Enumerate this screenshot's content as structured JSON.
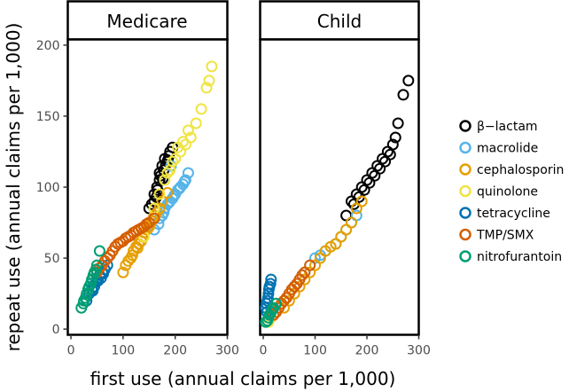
{
  "chart_data": {
    "type": "scatter",
    "xlabel": "first use (annual claims per 1,000)",
    "ylabel": "repeat use (annual claims per 1,000)",
    "xlim": [
      0,
      300
    ],
    "ylim": [
      0,
      200
    ],
    "xticks": [
      "0",
      "100",
      "200",
      "300"
    ],
    "yticks": [
      "0",
      "50",
      "100",
      "150",
      "200"
    ],
    "grid": false,
    "legend_position": "right",
    "legend": [
      {
        "name": "β−lactam",
        "color": "#000000"
      },
      {
        "name": "macrolide",
        "color": "#56B4E9"
      },
      {
        "name": "cephalosporin",
        "color": "#E69F00"
      },
      {
        "name": "quinolone",
        "color": "#F0E442"
      },
      {
        "name": "tetracycline",
        "color": "#0072B2"
      },
      {
        "name": "TMP/SMX",
        "color": "#D55E00"
      },
      {
        "name": "nitrofurantoin",
        "color": "#009E73"
      }
    ],
    "panels": [
      {
        "title": "Medicare",
        "series": [
          {
            "name": "β−lactam",
            "color": "#000000",
            "x": [
              150,
              160,
              165,
              170,
              175,
              180,
              185,
              190,
              160,
              170,
              178,
              188,
              195,
              172,
              182,
              155,
              166,
              176,
              186,
              164
            ],
            "y": [
              85,
              95,
              100,
              110,
              115,
              120,
              118,
              125,
              90,
              105,
              112,
              122,
              128,
              108,
              116,
              88,
              98,
              106,
              119,
              93
            ]
          },
          {
            "name": "macrolide",
            "color": "#56B4E9",
            "x": [
              160,
              170,
              180,
              190,
              200,
              210,
              220,
              175,
              185,
              195,
              205,
              215,
              168,
              178,
              188,
              198,
              208,
              218,
              225,
              192
            ],
            "y": [
              70,
              78,
              85,
              90,
              95,
              100,
              105,
              80,
              88,
              92,
              98,
              102,
              74,
              82,
              89,
              94,
              99,
              104,
              110,
              115
            ]
          },
          {
            "name": "cephalosporin",
            "color": "#E69F00",
            "x": [
              100,
              110,
              120,
              130,
              140,
              150,
              160,
              170,
              115,
              125,
              135,
              145,
              155,
              165,
              105,
              118,
              128,
              138,
              148,
              158,
              175,
              185
            ],
            "y": [
              40,
              48,
              55,
              60,
              68,
              72,
              80,
              85,
              50,
              58,
              62,
              70,
              76,
              82,
              45,
              52,
              57,
              65,
              71,
              78,
              90,
              96
            ]
          },
          {
            "name": "quinolone",
            "color": "#F0E442",
            "x": [
              140,
              150,
              160,
              170,
              180,
              190,
              200,
              210,
              220,
              230,
              240,
              250,
              260,
              265,
              270,
              195,
              205,
              215,
              225,
              185
            ],
            "y": [
              65,
              75,
              85,
              95,
              105,
              112,
              120,
              125,
              130,
              135,
              145,
              155,
              170,
              175,
              185,
              118,
              128,
              132,
              140,
              110
            ]
          },
          {
            "name": "tetracycline",
            "color": "#0072B2",
            "x": [
              30,
              40,
              50,
              60,
              70,
              45,
              55,
              65,
              35,
              48,
              58,
              42,
              52,
              62
            ],
            "y": [
              20,
              28,
              35,
              40,
              45,
              30,
              38,
              42,
              25,
              33,
              36,
              27,
              34,
              39
            ]
          },
          {
            "name": "TMP/SMX",
            "color": "#D55E00",
            "x": [
              50,
              60,
              70,
              80,
              90,
              100,
              110,
              120,
              130,
              140,
              150,
              160,
              65,
              75,
              85,
              95,
              105,
              115,
              125,
              135,
              145,
              55
            ],
            "y": [
              40,
              45,
              50,
              55,
              60,
              62,
              65,
              68,
              70,
              72,
              75,
              78,
              48,
              52,
              58,
              61,
              64,
              66,
              69,
              71,
              74,
              43
            ]
          },
          {
            "name": "nitrofurantoin",
            "color": "#009E73",
            "x": [
              20,
              25,
              30,
              35,
              40,
              45,
              50,
              55,
              28,
              33,
              38,
              43,
              48,
              24
            ],
            "y": [
              15,
              20,
              25,
              30,
              35,
              40,
              45,
              55,
              22,
              28,
              32,
              38,
              42,
              18
            ]
          }
        ]
      },
      {
        "title": "Child",
        "series": [
          {
            "name": "β−lactam",
            "color": "#000000",
            "x": [
              160,
              170,
              180,
              190,
              200,
              210,
              220,
              230,
              240,
              250,
              260,
              270,
              280,
              175,
              185,
              195,
              205,
              215,
              225,
              235,
              245,
              255
            ],
            "y": [
              80,
              90,
              95,
              100,
              105,
              110,
              115,
              120,
              125,
              130,
              145,
              165,
              175,
              88,
              93,
              98,
              103,
              108,
              113,
              118,
              123,
              135
            ]
          },
          {
            "name": "macrolide",
            "color": "#56B4E9",
            "x": [
              20,
              40,
              60,
              80,
              100,
              120,
              140,
              160,
              180,
              50,
              70,
              90,
              110,
              130,
              150,
              170,
              30
            ],
            "y": [
              10,
              20,
              30,
              40,
              50,
              55,
              60,
              70,
              80,
              25,
              35,
              45,
              52,
              58,
              65,
              75,
              15
            ]
          },
          {
            "name": "cephalosporin",
            "color": "#E69F00",
            "x": [
              40,
              60,
              80,
              100,
              120,
              140,
              160,
              170,
              180,
              190,
              70,
              90,
              110,
              130,
              150,
              50
            ],
            "y": [
              15,
              25,
              35,
              45,
              55,
              60,
              70,
              75,
              85,
              90,
              30,
              40,
              50,
              58,
              65,
              20
            ]
          },
          {
            "name": "quinolone",
            "color": "#F0E442",
            "x": [
              10,
              20,
              30,
              40,
              50,
              15,
              25,
              35,
              45
            ],
            "y": [
              5,
              10,
              15,
              20,
              25,
              8,
              12,
              18,
              22
            ]
          },
          {
            "name": "tetracycline",
            "color": "#0072B2",
            "x": [
              5,
              8,
              10,
              12,
              15,
              6,
              9,
              11,
              14,
              7
            ],
            "y": [
              15,
              20,
              25,
              30,
              35,
              18,
              22,
              28,
              32,
              12
            ]
          },
          {
            "name": "TMP/SMX",
            "color": "#D55E00",
            "x": [
              20,
              30,
              40,
              50,
              60,
              70,
              80,
              90,
              25,
              35,
              45,
              55,
              65,
              75
            ],
            "y": [
              10,
              15,
              20,
              25,
              30,
              35,
              40,
              45,
              12,
              18,
              22,
              28,
              32,
              38
            ]
          },
          {
            "name": "nitrofurantoin",
            "color": "#009E73",
            "x": [
              5,
              10,
              15,
              20,
              25,
              8,
              12,
              18
            ],
            "y": [
              5,
              8,
              12,
              15,
              18,
              6,
              10,
              14
            ]
          }
        ]
      }
    ]
  }
}
